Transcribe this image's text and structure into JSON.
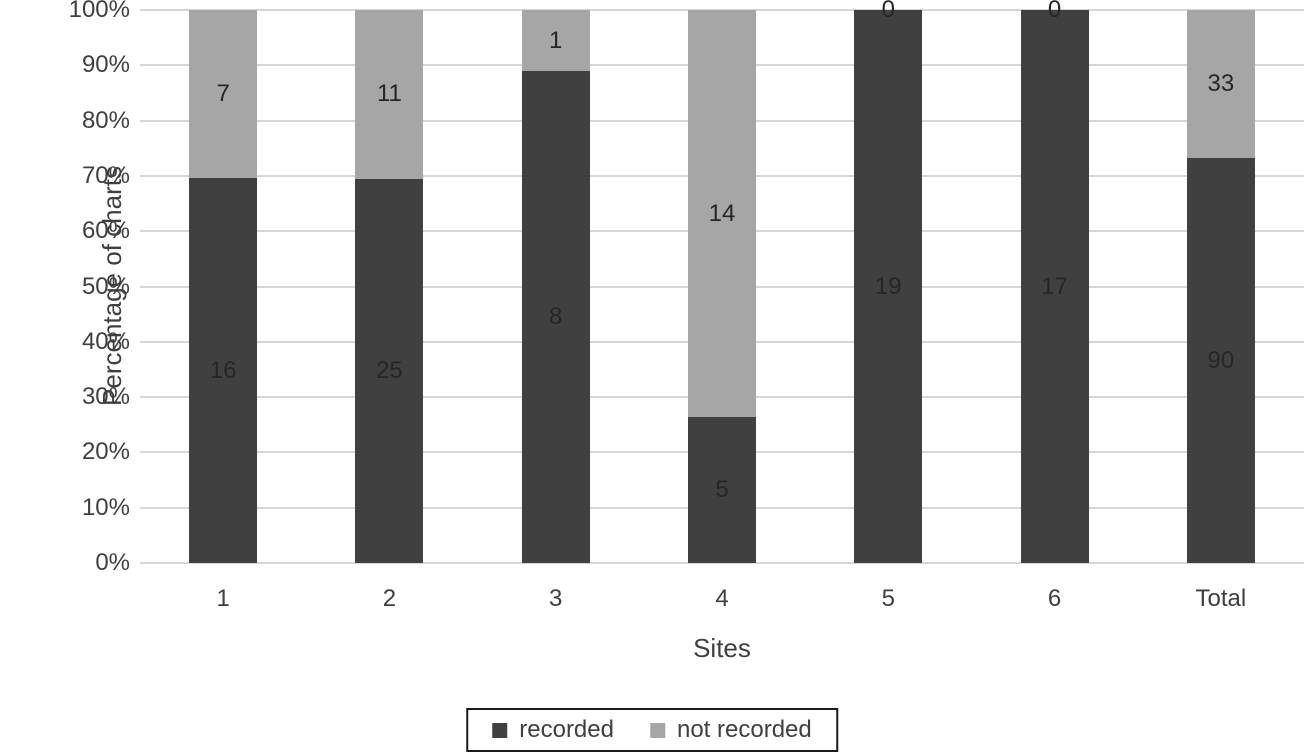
{
  "chart_data": {
    "type": "bar",
    "stacked": true,
    "stack_mode": "percent",
    "title": "",
    "xlabel": "Sites",
    "ylabel": "Percentage of charts",
    "categories": [
      "1",
      "2",
      "3",
      "4",
      "5",
      "6",
      "Total"
    ],
    "series": [
      {
        "name": "recorded",
        "color": "#404040",
        "values": [
          16,
          25,
          8,
          5,
          19,
          17,
          90
        ]
      },
      {
        "name": "not recorded",
        "color": "#a6a6a6",
        "values": [
          7,
          11,
          1,
          14,
          0,
          0,
          33
        ]
      }
    ],
    "y_ticks": [
      "0%",
      "10%",
      "20%",
      "30%",
      "40%",
      "50%",
      "60%",
      "70%",
      "80%",
      "90%",
      "100%"
    ],
    "ylim": [
      0,
      100
    ],
    "grid": true,
    "legend_position": "bottom",
    "data_labels": true
  },
  "colors": {
    "gridline": "#d6d6d6",
    "axis_text": "#3f3f3f",
    "data_label_text": "#262626",
    "legend_border": "#1a1a1a",
    "background": "#ffffff"
  }
}
